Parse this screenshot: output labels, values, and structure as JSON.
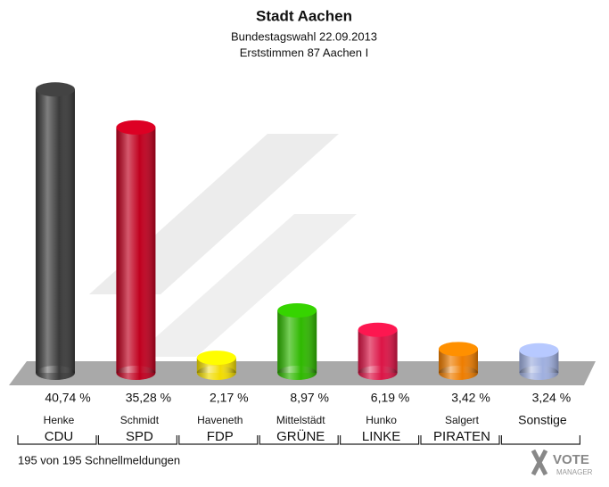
{
  "chart_data": {
    "type": "bar",
    "title": "Stadt Aachen",
    "subtitle": [
      "Bundestagswahl 22.09.2013",
      "Erststimmen 87 Aachen I"
    ],
    "categories": [
      "Henke",
      "Schmidt",
      "Haveneth",
      "Mittelstädt",
      "Hunko",
      "Salgert",
      null
    ],
    "parties": [
      "CDU",
      "SPD",
      "FDP",
      "GRÜNE",
      "LINKE",
      "PIRATEN",
      "Sonstige"
    ],
    "values": [
      40.74,
      35.28,
      2.17,
      8.97,
      6.19,
      3.42,
      3.24
    ],
    "value_labels": [
      "40,74 %",
      "35,28 %",
      "2,17 %",
      "8,97 %",
      "6,19 %",
      "3,42 %",
      "3,24 %"
    ],
    "colors": [
      "#3a3a3a",
      "#c0001f",
      "#f2dc00",
      "#2fb800",
      "#dc1446",
      "#ee7d00",
      "#9fafdf"
    ],
    "footer": "195 von 195 Schnellmeldungen",
    "logo": [
      "VOTE",
      "MANAGER"
    ]
  }
}
